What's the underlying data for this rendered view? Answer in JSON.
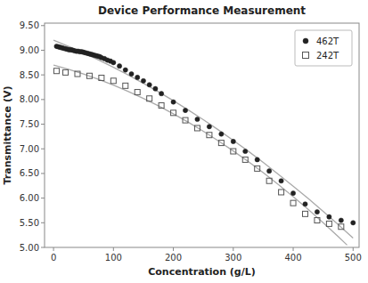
{
  "chart_data": {
    "type": "scatter",
    "title": "Device Performance Measurement",
    "x_label": "Concentration (g/L)",
    "y_label": "Transmittance (V)",
    "xlim": [
      -15,
      510
    ],
    "ylim": [
      5.0,
      9.55
    ],
    "xticks": [
      0,
      100,
      200,
      300,
      400,
      500
    ],
    "yticks": [
      {
        "value": 5.0,
        "label": "5.00"
      },
      {
        "value": 5.5,
        "label": "5.50"
      },
      {
        "value": 6.0,
        "label": "6.00"
      },
      {
        "value": 6.5,
        "label": "6.50"
      },
      {
        "value": 7.0,
        "label": "7.00"
      },
      {
        "value": 7.5,
        "label": "7.50"
      },
      {
        "value": 8.0,
        "label": "8.00"
      },
      {
        "value": 8.5,
        "label": "8.50"
      },
      {
        "value": 9.0,
        "label": "9.00"
      },
      {
        "value": 9.5,
        "label": "9.50"
      }
    ],
    "grid": false,
    "legend": "upper right",
    "series": [
      {
        "name": "462T",
        "type": "scatter",
        "marker": "circle",
        "color": "#222222",
        "x": [
          5,
          8,
          11,
          14,
          17,
          20,
          23,
          26,
          29,
          32,
          35,
          38,
          41,
          44,
          47,
          50,
          53,
          56,
          59,
          62,
          65,
          68,
          71,
          74,
          77,
          80,
          85,
          90,
          95,
          100,
          110,
          120,
          130,
          140,
          150,
          160,
          170,
          180,
          200,
          220,
          240,
          260,
          280,
          300,
          320,
          340,
          360,
          380,
          400,
          420,
          440,
          460,
          480,
          500
        ],
        "values": [
          9.08,
          9.07,
          9.06,
          9.05,
          9.04,
          9.03,
          9.02,
          9.01,
          9.01,
          9.0,
          8.99,
          8.98,
          8.98,
          8.97,
          8.97,
          8.96,
          8.95,
          8.94,
          8.93,
          8.92,
          8.91,
          8.9,
          8.89,
          8.88,
          8.87,
          8.85,
          8.83,
          8.8,
          8.78,
          8.75,
          8.68,
          8.6,
          8.52,
          8.45,
          8.38,
          8.3,
          8.22,
          8.12,
          7.95,
          7.78,
          7.6,
          7.45,
          7.3,
          7.15,
          6.95,
          6.78,
          6.55,
          6.35,
          6.1,
          5.88,
          5.72,
          5.62,
          5.55,
          5.5
        ]
      },
      {
        "name": "242T",
        "type": "scatter",
        "marker": "open-square",
        "color": "#555555",
        "x": [
          5,
          20,
          40,
          60,
          80,
          100,
          120,
          140,
          160,
          180,
          200,
          220,
          240,
          260,
          280,
          300,
          320,
          340,
          360,
          380,
          400,
          420,
          440,
          460,
          480
        ],
        "values": [
          8.58,
          8.55,
          8.52,
          8.48,
          8.44,
          8.38,
          8.28,
          8.15,
          8.02,
          7.88,
          7.73,
          7.58,
          7.42,
          7.28,
          7.12,
          6.95,
          6.78,
          6.6,
          6.35,
          6.12,
          5.9,
          5.68,
          5.55,
          5.48,
          5.42
        ]
      },
      {
        "type": "line",
        "line_style": "solid",
        "color": "#aaaaaa",
        "x": [
          0,
          25,
          50,
          75,
          100,
          125,
          150,
          175,
          200,
          225,
          250,
          275,
          300,
          325,
          350,
          375,
          400,
          425,
          450,
          475,
          500
        ],
        "values": [
          9.2045,
          9.078,
          8.945,
          8.803,
          8.653,
          8.496,
          8.33,
          8.157,
          7.976,
          7.787,
          7.59,
          7.385,
          7.172,
          6.952,
          6.724,
          6.487,
          6.243,
          5.991,
          5.731,
          5.463,
          5.188
        ]
      },
      {
        "type": "line",
        "line_style": "solid",
        "color": "#aaaaaa",
        "x": [
          0,
          25,
          50,
          75,
          100,
          125,
          150,
          175,
          200,
          225,
          250,
          275,
          300,
          325,
          350,
          375,
          400,
          425,
          450,
          475,
          490
        ],
        "values": [
          8.6995,
          8.614,
          8.517,
          8.41,
          8.292,
          8.163,
          8.023,
          7.873,
          7.711,
          7.539,
          7.356,
          7.162,
          6.957,
          6.742,
          6.515,
          6.278,
          6.03,
          5.771,
          5.501,
          5.221,
          5.047
        ]
      }
    ]
  }
}
